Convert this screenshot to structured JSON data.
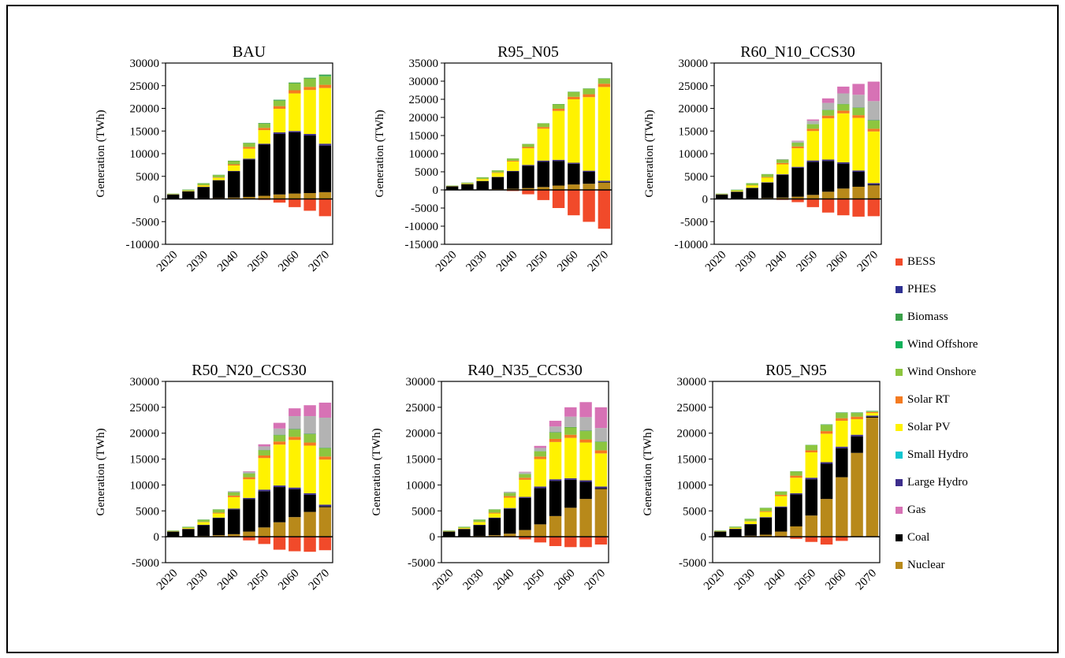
{
  "figure": {
    "legend": [
      {
        "name": "BESS",
        "color": "#f14a2a"
      },
      {
        "name": "PHES",
        "color": "#2e3192"
      },
      {
        "name": "Biomass",
        "color": "#3aa049"
      },
      {
        "name": "Wind Offshore",
        "color": "#10b15a"
      },
      {
        "name": "Wind Onshore",
        "color": "#8dc63f"
      },
      {
        "name": "Solar RT",
        "color": "#f47b20"
      },
      {
        "name": "Solar PV",
        "color": "#fff200"
      },
      {
        "name": "Small Hydro",
        "color": "#10c6d0"
      },
      {
        "name": "Large Hydro",
        "color": "#3d2e8c"
      },
      {
        "name": "Gas",
        "color": "#d772b5"
      },
      {
        "name": "Coal",
        "color": "#000000"
      },
      {
        "name": "Nuclear",
        "color": "#b8891a"
      }
    ],
    "extra_colors": {
      "CCS": "#b3b3b3"
    }
  },
  "chart_data": [
    {
      "type": "bar",
      "stacked": true,
      "title": "BAU",
      "ylabel": "Generation (TWh)",
      "ylim": [
        -10000,
        30000
      ],
      "ytick_step": 5000,
      "categories": [
        "2020",
        "2025",
        "2030",
        "2035",
        "2040",
        "2045",
        "2050",
        "2055",
        "2060",
        "2065",
        "2070"
      ],
      "xtick_labels": [
        "2020",
        "2030",
        "2040",
        "2050",
        "2060",
        "2070"
      ],
      "series": [
        {
          "name": "Nuclear",
          "values": [
            50,
            80,
            120,
            180,
            300,
            450,
            700,
            1000,
            1200,
            1300,
            1500
          ]
        },
        {
          "name": "Coal",
          "values": [
            950,
            1600,
            2500,
            3900,
            5800,
            8300,
            11300,
            13400,
            13500,
            12700,
            10300
          ]
        },
        {
          "name": "Large Hydro",
          "values": [
            20,
            40,
            60,
            80,
            100,
            150,
            200,
            300,
            300,
            350,
            400
          ]
        },
        {
          "name": "Solar PV",
          "values": [
            50,
            100,
            300,
            500,
            1200,
            2200,
            3000,
            5200,
            8300,
            9700,
            12300
          ]
        },
        {
          "name": "Solar RT",
          "values": [
            10,
            30,
            60,
            100,
            250,
            400,
            500,
            600,
            700,
            700,
            700
          ]
        },
        {
          "name": "Wind Onshore",
          "values": [
            100,
            200,
            400,
            500,
            700,
            800,
            900,
            1200,
            1500,
            1800,
            1900
          ]
        },
        {
          "name": "Wind Offshore",
          "values": [
            0,
            0,
            0,
            0,
            0,
            0,
            0,
            0,
            0,
            0,
            100
          ]
        },
        {
          "name": "Biomass",
          "values": [
            20,
            40,
            60,
            80,
            100,
            100,
            150,
            200,
            200,
            200,
            250
          ]
        },
        {
          "name": "BESS",
          "values": [
            0,
            0,
            0,
            0,
            0,
            0,
            -200,
            -800,
            -1800,
            -2600,
            -3800
          ]
        }
      ]
    },
    {
      "type": "bar",
      "stacked": true,
      "title": "R95_N05",
      "ylabel": "Generation (TWh)",
      "ylim": [
        -15000,
        35000
      ],
      "ytick_step": 5000,
      "categories": [
        "2020",
        "2025",
        "2030",
        "2035",
        "2040",
        "2045",
        "2050",
        "2055",
        "2060",
        "2065",
        "2070"
      ],
      "xtick_labels": [
        "2020",
        "2030",
        "2040",
        "2050",
        "2060",
        "2070"
      ],
      "series": [
        {
          "name": "Nuclear",
          "values": [
            50,
            80,
            120,
            200,
            300,
            500,
            800,
            1200,
            1500,
            1700,
            2000
          ]
        },
        {
          "name": "Coal",
          "values": [
            950,
            1500,
            2300,
            3300,
            4800,
            6200,
            7000,
            6800,
            5700,
            3300,
            200
          ]
        },
        {
          "name": "Large Hydro",
          "values": [
            20,
            40,
            60,
            100,
            150,
            200,
            300,
            300,
            300,
            300,
            300
          ]
        },
        {
          "name": "Solar PV",
          "values": [
            50,
            150,
            500,
            1100,
            2600,
            4600,
            8800,
            13500,
            17500,
            20300,
            25900
          ]
        },
        {
          "name": "Solar RT",
          "values": [
            10,
            30,
            60,
            150,
            200,
            350,
            450,
            600,
            700,
            800,
            900
          ]
        },
        {
          "name": "Wind Onshore",
          "values": [
            100,
            200,
            400,
            500,
            600,
            800,
            1000,
            1200,
            1300,
            1500,
            1400
          ]
        },
        {
          "name": "Biomass",
          "values": [
            20,
            40,
            60,
            50,
            50,
            50,
            50,
            100,
            100,
            100,
            100
          ]
        },
        {
          "name": "BESS",
          "values": [
            0,
            0,
            0,
            0,
            -300,
            -1200,
            -2800,
            -5000,
            -7000,
            -8800,
            -10700
          ]
        }
      ]
    },
    {
      "type": "bar",
      "stacked": true,
      "title": "R60_N10_CCS30",
      "ylabel": "Generation (TWh)",
      "ylim": [
        -10000,
        30000
      ],
      "ytick_step": 5000,
      "categories": [
        "2020",
        "2025",
        "2030",
        "2035",
        "2040",
        "2045",
        "2050",
        "2055",
        "2060",
        "2065",
        "2070"
      ],
      "xtick_labels": [
        "2020",
        "2030",
        "2040",
        "2050",
        "2060",
        "2070"
      ],
      "series": [
        {
          "name": "Nuclear",
          "values": [
            50,
            80,
            120,
            200,
            300,
            500,
            900,
            1600,
            2300,
            2700,
            3000
          ]
        },
        {
          "name": "Coal",
          "values": [
            950,
            1500,
            2300,
            3400,
            5000,
            6400,
            7300,
            6800,
            5500,
            3300,
            200
          ]
        },
        {
          "name": "Large Hydro",
          "values": [
            20,
            40,
            60,
            100,
            150,
            200,
            300,
            300,
            300,
            300,
            300
          ]
        },
        {
          "name": "Solar PV",
          "values": [
            50,
            150,
            500,
            1000,
            2200,
            4100,
            6500,
            9100,
            10800,
            11600,
            11400
          ]
        },
        {
          "name": "Solar RT",
          "values": [
            10,
            30,
            60,
            150,
            300,
            400,
            500,
            600,
            600,
            600,
            600
          ]
        },
        {
          "name": "Wind Onshore",
          "values": [
            100,
            200,
            400,
            600,
            700,
            800,
            1000,
            1200,
            1400,
            1600,
            1800
          ]
        },
        {
          "name": "Biomass",
          "values": [
            20,
            40,
            60,
            50,
            50,
            50,
            50,
            100,
            100,
            100,
            100
          ]
        },
        {
          "name": "CCS",
          "values": [
            0,
            0,
            0,
            0,
            100,
            300,
            700,
            1500,
            2300,
            2800,
            4200
          ]
        },
        {
          "name": "Gas",
          "values": [
            0,
            0,
            0,
            0,
            0,
            100,
            300,
            1000,
            1500,
            2400,
            4300
          ]
        },
        {
          "name": "BESS",
          "values": [
            0,
            0,
            0,
            0,
            -200,
            -700,
            -1800,
            -3000,
            -3600,
            -3900,
            -3800
          ]
        }
      ]
    },
    {
      "type": "bar",
      "stacked": true,
      "title": "R50_N20_CCS30",
      "ylabel": "Generation (TWh)",
      "ylim": [
        -5000,
        30000
      ],
      "ytick_step": 5000,
      "categories": [
        "2020",
        "2025",
        "2030",
        "2035",
        "2040",
        "2045",
        "2050",
        "2055",
        "2060",
        "2065",
        "2070"
      ],
      "xtick_labels": [
        "2020",
        "2030",
        "2040",
        "2050",
        "2060",
        "2070"
      ],
      "series": [
        {
          "name": "Nuclear",
          "values": [
            50,
            80,
            150,
            300,
            500,
            1000,
            1800,
            2800,
            3800,
            4800,
            5700
          ]
        },
        {
          "name": "Coal",
          "values": [
            950,
            1400,
            2100,
            3300,
            4800,
            6300,
            7000,
            6800,
            5400,
            3300,
            200
          ]
        },
        {
          "name": "Large Hydro",
          "values": [
            20,
            40,
            60,
            100,
            150,
            200,
            300,
            300,
            300,
            300,
            300
          ]
        },
        {
          "name": "Solar PV",
          "values": [
            50,
            150,
            500,
            800,
            2200,
            3600,
            6100,
            7900,
            9200,
            9200,
            8700
          ]
        },
        {
          "name": "Solar RT",
          "values": [
            10,
            30,
            60,
            150,
            300,
            400,
            500,
            600,
            600,
            600,
            600
          ]
        },
        {
          "name": "Wind Onshore",
          "values": [
            100,
            200,
            400,
            600,
            600,
            700,
            1000,
            1200,
            1400,
            1600,
            1600
          ]
        },
        {
          "name": "Biomass",
          "values": [
            20,
            40,
            60,
            50,
            50,
            50,
            50,
            100,
            100,
            100,
            100
          ]
        },
        {
          "name": "CCS",
          "values": [
            0,
            0,
            0,
            0,
            200,
            300,
            700,
            1200,
            2500,
            3400,
            5800
          ]
        },
        {
          "name": "Gas",
          "values": [
            0,
            0,
            0,
            0,
            0,
            100,
            400,
            1100,
            1500,
            2100,
            2900
          ]
        },
        {
          "name": "BESS",
          "values": [
            0,
            0,
            0,
            0,
            -100,
            -700,
            -1400,
            -2500,
            -2800,
            -2900,
            -2600
          ]
        }
      ]
    },
    {
      "type": "bar",
      "stacked": true,
      "title": "R40_N35_CCS30",
      "ylabel": "Generation (TWh)",
      "ylim": [
        -5000,
        30000
      ],
      "ytick_step": 5000,
      "categories": [
        "2020",
        "2025",
        "2030",
        "2035",
        "2040",
        "2045",
        "2050",
        "2055",
        "2060",
        "2065",
        "2070"
      ],
      "xtick_labels": [
        "2020",
        "2030",
        "2040",
        "2050",
        "2060",
        "2070"
      ],
      "series": [
        {
          "name": "Nuclear",
          "values": [
            50,
            80,
            150,
            300,
            600,
            1300,
            2400,
            4000,
            5600,
            7300,
            9200
          ]
        },
        {
          "name": "Coal",
          "values": [
            950,
            1400,
            2100,
            3300,
            4800,
            6200,
            7000,
            6800,
            5400,
            3300,
            200
          ]
        },
        {
          "name": "Large Hydro",
          "values": [
            20,
            40,
            60,
            100,
            150,
            200,
            300,
            300,
            300,
            300,
            300
          ]
        },
        {
          "name": "Solar PV",
          "values": [
            50,
            150,
            500,
            800,
            2000,
            3300,
            5300,
            7200,
            7800,
            7300,
            6400
          ]
        },
        {
          "name": "Solar RT",
          "values": [
            10,
            30,
            60,
            150,
            300,
            400,
            500,
            600,
            600,
            600,
            600
          ]
        },
        {
          "name": "Wind Onshore",
          "values": [
            100,
            200,
            400,
            600,
            600,
            700,
            1000,
            1200,
            1400,
            1600,
            1600
          ]
        },
        {
          "name": "Biomass",
          "values": [
            20,
            40,
            60,
            50,
            50,
            50,
            50,
            100,
            100,
            100,
            100
          ]
        },
        {
          "name": "CCS",
          "values": [
            0,
            0,
            0,
            0,
            200,
            300,
            600,
            1100,
            2000,
            2600,
            2600
          ]
        },
        {
          "name": "Gas",
          "values": [
            0,
            0,
            0,
            0,
            0,
            100,
            400,
            1100,
            1800,
            2900,
            4000
          ]
        },
        {
          "name": "BESS",
          "values": [
            0,
            0,
            0,
            0,
            -100,
            -500,
            -1100,
            -1800,
            -2000,
            -2000,
            -1500
          ]
        }
      ]
    },
    {
      "type": "bar",
      "stacked": true,
      "title": "R05_N95",
      "ylabel": "Generation (TWh)",
      "ylim": [
        -5000,
        30000
      ],
      "ytick_step": 5000,
      "categories": [
        "2020",
        "2025",
        "2030",
        "2035",
        "2040",
        "2045",
        "2050",
        "2055",
        "2060",
        "2065",
        "2070"
      ],
      "xtick_labels": [
        "2020",
        "2030",
        "2040",
        "2050",
        "2060",
        "2070"
      ],
      "series": [
        {
          "name": "Nuclear",
          "values": [
            50,
            100,
            200,
            400,
            1000,
            2000,
            4100,
            7300,
            11500,
            16200,
            23000
          ]
        },
        {
          "name": "Coal",
          "values": [
            950,
            1400,
            2200,
            3300,
            4700,
            6200,
            7000,
            6800,
            5600,
            3200,
            200
          ]
        },
        {
          "name": "Large Hydro",
          "values": [
            20,
            40,
            60,
            100,
            150,
            200,
            300,
            300,
            300,
            300,
            200
          ]
        },
        {
          "name": "Solar PV",
          "values": [
            50,
            150,
            500,
            1000,
            2000,
            3000,
            4900,
            5500,
            5000,
            3000,
            500
          ]
        },
        {
          "name": "Solar RT",
          "values": [
            10,
            30,
            60,
            150,
            250,
            400,
            400,
            500,
            500,
            500,
            200
          ]
        },
        {
          "name": "Wind Onshore",
          "values": [
            100,
            200,
            400,
            600,
            600,
            800,
            1000,
            1200,
            1000,
            700,
            100
          ]
        },
        {
          "name": "Biomass",
          "values": [
            20,
            40,
            60,
            50,
            50,
            50,
            50,
            100,
            100,
            100,
            100
          ]
        },
        {
          "name": "BESS",
          "values": [
            0,
            0,
            0,
            0,
            -100,
            -400,
            -1000,
            -1500,
            -800,
            0,
            0
          ]
        }
      ]
    }
  ]
}
